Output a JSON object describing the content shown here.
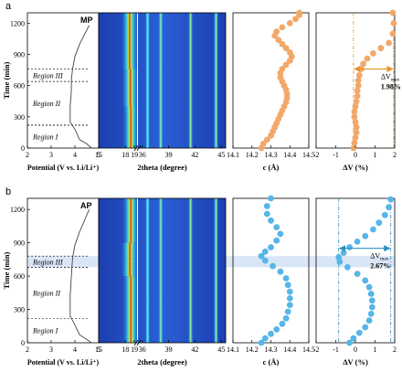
{
  "panel_letters": [
    "a",
    "b"
  ],
  "colors": {
    "mp_marker": "#f2a86a",
    "ap_marker": "#57b5e8",
    "arrow_mp": "#e8952e",
    "arrow_ap": "#2d8fbf",
    "highlight": "#a8c8ec"
  },
  "chart_data": [
    {
      "panel": "a",
      "sample": "MP",
      "type": "line",
      "subplot": "potential",
      "x": [
        4.7,
        4.5,
        4.2,
        4.0,
        3.8,
        3.8,
        3.85,
        3.85,
        3.9,
        4.0,
        4.2,
        4.6
      ],
      "y": [
        0,
        40,
        80,
        180,
        250,
        400,
        550,
        650,
        760,
        880,
        1000,
        1180
      ],
      "xlabel": "Potential (V vs. Li/Li⁺)",
      "ylabel": "Time (min)",
      "xticks": [
        "2",
        "3",
        "4",
        "5"
      ],
      "yticks": [
        "0",
        "300",
        "600",
        "900",
        "1200"
      ],
      "xlim": [
        2,
        5
      ],
      "ylim": [
        0,
        1300
      ],
      "regions": [
        {
          "label": "Region III",
          "y_range": [
            640,
            760
          ]
        },
        {
          "label": "Region II",
          "y_range": [
            220,
            640
          ]
        },
        {
          "label": "Region I",
          "y_range": [
            0,
            220
          ]
        }
      ]
    },
    {
      "panel": "a",
      "sample": "MP",
      "type": "heatmap",
      "subplot": "2theta",
      "xlabel": "2theta (degree)",
      "xticks": [
        "15",
        "18",
        "19",
        "36",
        "39",
        "42",
        "45"
      ],
      "ylim": [
        0,
        1300
      ],
      "peaks": [
        {
          "x_range": [
            15,
            19
          ],
          "peak_path": [
            [
              18.6,
              0
            ],
            [
              18.6,
              400
            ],
            [
              18.5,
              760
            ],
            [
              18.45,
              900
            ],
            [
              18.5,
              1300
            ]
          ]
        },
        {
          "x_range": [
            36,
            45
          ],
          "peak_path": [
            [
              36.6,
              0
            ],
            [
              36.6,
              1300
            ]
          ]
        },
        {
          "x_range": [
            36,
            45
          ],
          "peak_path": [
            [
              38.1,
              0
            ],
            [
              38.1,
              1300
            ]
          ]
        },
        {
          "x_range": [
            36,
            45
          ],
          "peak_path": [
            [
              41.5,
              0
            ],
            [
              41.5,
              1300
            ]
          ]
        },
        {
          "x_range": [
            36,
            45
          ],
          "peak_path": [
            [
              44.4,
              0
            ],
            [
              44.4,
              1300
            ]
          ]
        }
      ]
    },
    {
      "panel": "a",
      "sample": "MP",
      "type": "scatter",
      "subplot": "c_lattice",
      "x": [
        14.25,
        14.26,
        14.28,
        14.3,
        14.31,
        14.32,
        14.33,
        14.34,
        14.35,
        14.36,
        14.37,
        14.38,
        14.385,
        14.385,
        14.38,
        14.37,
        14.36,
        14.35,
        14.35,
        14.36,
        14.38,
        14.4,
        14.41,
        14.4,
        14.38,
        14.36,
        14.34,
        14.32,
        14.33,
        14.36,
        14.4,
        14.43,
        14.45,
        14.45
      ],
      "y": [
        0,
        40,
        80,
        120,
        160,
        200,
        240,
        280,
        320,
        360,
        400,
        440,
        480,
        520,
        560,
        600,
        640,
        680,
        720,
        760,
        800,
        840,
        880,
        920,
        960,
        1000,
        1040,
        1080,
        1120,
        1160,
        1200,
        1240,
        1280,
        1300
      ],
      "xlabel": "c (Å)",
      "xticks": [
        "14.1",
        "14.2",
        "14.3",
        "14.4",
        "14.5"
      ],
      "xlim": [
        14.1,
        14.5
      ],
      "ylim": [
        0,
        1300
      ]
    },
    {
      "panel": "a",
      "sample": "MP",
      "type": "scatter",
      "subplot": "volume_change",
      "x": [
        -0.1,
        -0.05,
        0.0,
        0.05,
        0.05,
        0.0,
        -0.05,
        -0.05,
        0.0,
        0.05,
        0.1,
        0.1,
        0.15,
        0.15,
        0.2,
        0.3,
        0.4,
        0.6,
        0.9,
        1.3,
        1.7,
        1.9,
        1.95,
        1.9
      ],
      "y": [
        0,
        50,
        100,
        150,
        200,
        250,
        300,
        350,
        400,
        450,
        500,
        550,
        600,
        650,
        700,
        760,
        810,
        860,
        910,
        960,
        1010,
        1100,
        1200,
        1300
      ],
      "xlabel": "ΔV (%)",
      "xticks": [
        "-2",
        "-1",
        "0",
        "1",
        "2"
      ],
      "xlim": [
        -2,
        2
      ],
      "ylim": [
        0,
        1300
      ],
      "annotation": {
        "symbol": "ΔV",
        "subscript": "max",
        "value": "1.98%"
      }
    },
    {
      "panel": "b",
      "sample": "AP",
      "type": "line",
      "subplot": "potential",
      "x": [
        4.7,
        4.5,
        4.2,
        4.0,
        3.8,
        3.8,
        3.85,
        3.9,
        4.0,
        4.2,
        4.6
      ],
      "y": [
        0,
        30,
        70,
        160,
        240,
        420,
        600,
        760,
        880,
        1000,
        1200
      ],
      "xlabel": "Potential (V vs. Li/Li⁺)",
      "ylabel": "Time (min)",
      "xticks": [
        "2",
        "3",
        "4",
        "5"
      ],
      "yticks": [
        "0",
        "300",
        "600",
        "900",
        "1200"
      ],
      "xlim": [
        2,
        5
      ],
      "ylim": [
        0,
        1300
      ],
      "regions": [
        {
          "label": "Region III",
          "y_range": [
            680,
            780
          ]
        },
        {
          "label": "Region II",
          "y_range": [
            220,
            680
          ]
        },
        {
          "label": "Region I",
          "y_range": [
            0,
            220
          ]
        }
      ]
    },
    {
      "panel": "b",
      "sample": "AP",
      "type": "heatmap",
      "subplot": "2theta",
      "xlabel": "2theta (degree)",
      "xticks": [
        "15",
        "18",
        "19",
        "36",
        "39",
        "42",
        "45"
      ],
      "ylim": [
        0,
        1300
      ],
      "peaks": [
        {
          "x_range": [
            15,
            19
          ],
          "peak_path": [
            [
              18.6,
              0
            ],
            [
              18.6,
              600
            ],
            [
              18.4,
              760
            ],
            [
              18.6,
              900
            ],
            [
              18.6,
              1300
            ]
          ]
        },
        {
          "x_range": [
            36,
            45
          ],
          "peak_path": [
            [
              36.6,
              0
            ],
            [
              36.6,
              1300
            ]
          ]
        },
        {
          "x_range": [
            36,
            45
          ],
          "peak_path": [
            [
              38.1,
              0
            ],
            [
              38.1,
              1300
            ]
          ]
        },
        {
          "x_range": [
            36,
            45
          ],
          "peak_path": [
            [
              41.5,
              0
            ],
            [
              41.5,
              1300
            ]
          ]
        },
        {
          "x_range": [
            36,
            45
          ],
          "peak_path": [
            [
              44.4,
              0
            ],
            [
              44.4,
              1300
            ]
          ]
        }
      ]
    },
    {
      "panel": "b",
      "sample": "AP",
      "type": "scatter",
      "subplot": "c_lattice",
      "x": [
        14.25,
        14.27,
        14.3,
        14.33,
        14.36,
        14.38,
        14.39,
        14.4,
        14.4,
        14.4,
        14.39,
        14.38,
        14.35,
        14.31,
        14.27,
        14.25,
        14.27,
        14.3,
        14.33,
        14.35,
        14.33,
        14.3,
        14.28,
        14.28,
        14.3
      ],
      "y": [
        0,
        40,
        80,
        120,
        170,
        220,
        280,
        340,
        400,
        460,
        520,
        580,
        640,
        690,
        740,
        780,
        820,
        860,
        920,
        980,
        1040,
        1100,
        1160,
        1230,
        1300
      ],
      "xlabel": "c (Å)",
      "xticks": [
        "14.1",
        "14.2",
        "14.3",
        "14.4",
        "14.5"
      ],
      "xlim": [
        14.1,
        14.5
      ],
      "ylim": [
        0,
        1300
      ]
    },
    {
      "panel": "b",
      "sample": "AP",
      "type": "scatter",
      "subplot": "volume_change",
      "x": [
        -0.3,
        -0.1,
        0.2,
        0.5,
        0.7,
        0.8,
        0.85,
        0.85,
        0.8,
        0.7,
        0.5,
        0.1,
        -0.4,
        -0.8,
        -0.85,
        -0.6,
        -0.3,
        0.1,
        0.5,
        0.9,
        1.2,
        1.5,
        1.7,
        1.8
      ],
      "y": [
        0,
        40,
        90,
        140,
        200,
        260,
        320,
        380,
        440,
        500,
        560,
        620,
        680,
        730,
        770,
        810,
        860,
        910,
        960,
        1020,
        1080,
        1150,
        1220,
        1290
      ],
      "xlabel": "ΔV (%)",
      "xticks": [
        "-2",
        "-1",
        "0",
        "1",
        "2"
      ],
      "xlim": [
        -2,
        2
      ],
      "ylim": [
        0,
        1300
      ],
      "annotation": {
        "symbol": "ΔV",
        "subscript": "max",
        "value": "2.67%"
      }
    }
  ]
}
